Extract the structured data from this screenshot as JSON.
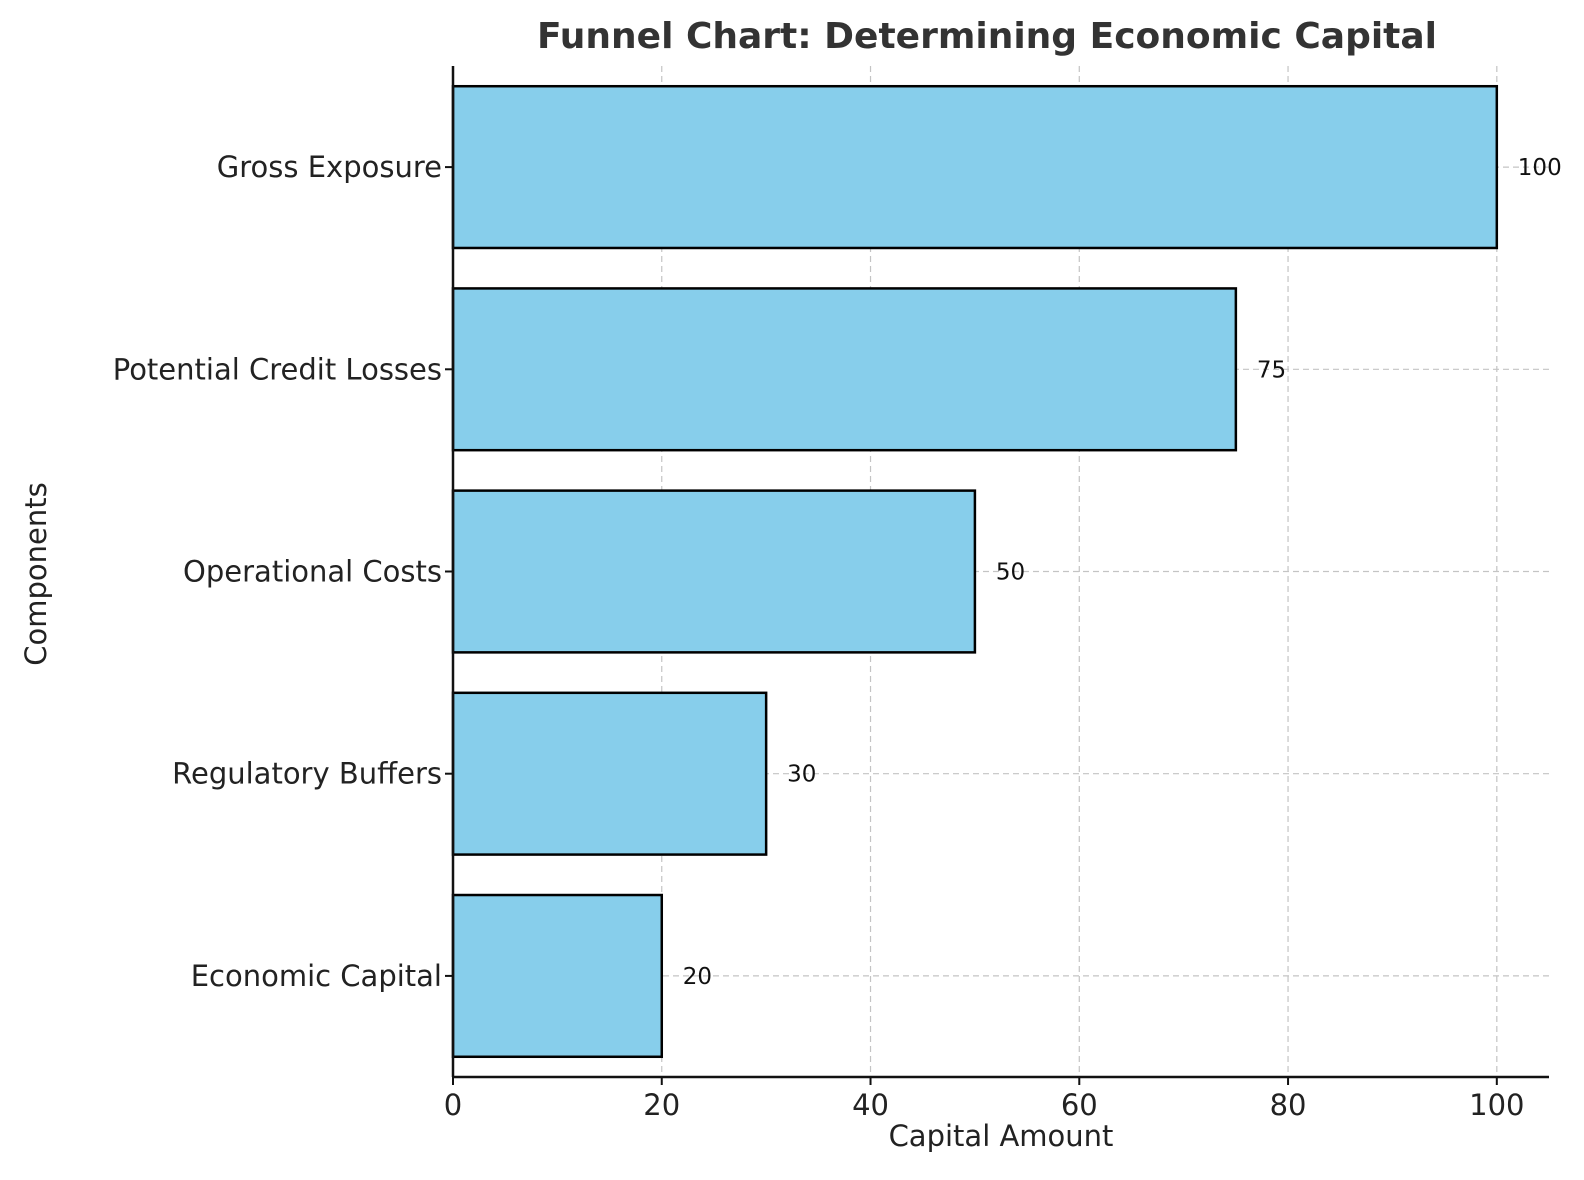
{
  "chart_data": {
    "type": "bar",
    "orientation": "horizontal",
    "title": "Funnel Chart: Determining Economic Capital",
    "xlabel": "Capital Amount",
    "ylabel": "Components",
    "categories": [
      "Gross Exposure",
      "Potential Credit Losses",
      "Operational Costs",
      "Regulatory Buffers",
      "Economic Capital"
    ],
    "values": [
      100,
      75,
      50,
      30,
      20
    ],
    "data_labels": [
      "100",
      "75",
      "50",
      "30",
      "20"
    ],
    "xlim": [
      0,
      105
    ],
    "xticks": [
      0,
      20,
      40,
      60,
      80,
      100
    ],
    "xtick_labels": [
      "0",
      "20",
      "40",
      "60",
      "80",
      "100"
    ],
    "grid": true,
    "colors": {
      "bar_fill": "#87CEEB",
      "bar_edge": "#000000",
      "grid": "#c4c4c4"
    }
  }
}
